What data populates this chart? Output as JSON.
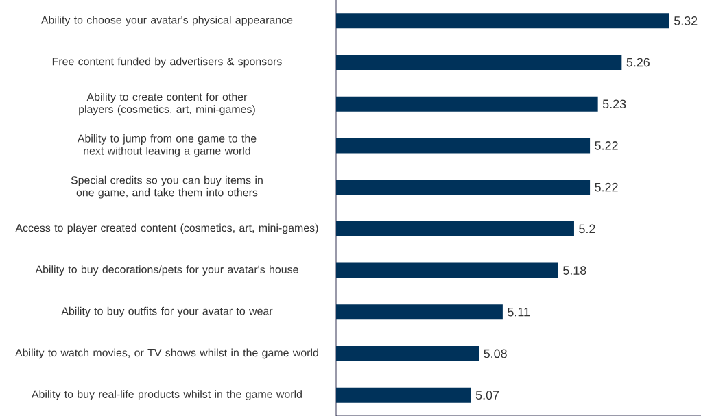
{
  "chart_data": {
    "type": "bar",
    "orientation": "horizontal",
    "categories": [
      "Ability to choose your avatar's physical appearance",
      "Free content funded by advertisers & sponsors",
      "Ability to create content for other players (cosmetics, art, mini-games)",
      "Ability to jump from one game to the next without leaving a game world",
      "Special credits so you can buy items in one game, and take them into others",
      "Access to player created content (cosmetics, art, mini-games)",
      "Ability to buy decorations/pets for your avatar's house",
      "Ability to buy outfits for your avatar to wear",
      "Ability to watch movies, or TV shows whilst in the game world",
      "Ability to buy real-life products whilst in the game world"
    ],
    "values": [
      5.32,
      5.26,
      5.23,
      5.22,
      5.22,
      5.2,
      5.18,
      5.11,
      5.08,
      5.07
    ],
    "color": "#00325a",
    "xlim": [
      4.9,
      5.36
    ],
    "data_labels": true,
    "tick_labels": "y"
  }
}
